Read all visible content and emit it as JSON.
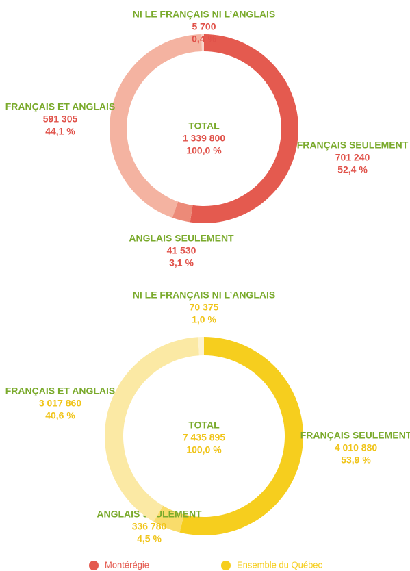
{
  "chart_data": [
    {
      "type": "donut",
      "name": "Montérégie",
      "color": "#e45a4f",
      "categories": [
        "FRANÇAIS SEULEMENT",
        "ANGLAIS SEULEMENT",
        "FRANÇAIS ET ANGLAIS",
        "NI LE FRANÇAIS NI L’ANGLAIS"
      ],
      "values": [
        701240,
        41530,
        591305,
        5700
      ],
      "value_labels": [
        "701 240",
        "41 530",
        "591 305",
        "5 700"
      ],
      "percentages": [
        52.4,
        3.1,
        44.1,
        0.4
      ],
      "percentage_labels": [
        "52,4 %",
        "3,1 %",
        "44,1 %",
        "0,4 %"
      ],
      "colors": [
        "#e45a4f",
        "#ec8a78",
        "#f4b3a1",
        "#f9d6cc"
      ],
      "total_title": "TOTAL",
      "total": 1339800,
      "total_label": "1 339 800",
      "total_percentage": 100,
      "total_percentage_label": "100,0 %"
    },
    {
      "type": "donut",
      "name": "Ensemble du Québec",
      "color": "#f6ce1e",
      "categories": [
        "FRANÇAIS SEULEMENT",
        "ANGLAIS SEULEMENT",
        "FRANÇAIS ET ANGLAIS",
        "NI LE FRANÇAIS NI L’ANGLAIS"
      ],
      "values": [
        4010880,
        336780,
        3017860,
        70375
      ],
      "value_labels": [
        "4 010 880",
        "336 780",
        "3 017 860",
        "70 375"
      ],
      "percentages": [
        53.9,
        4.5,
        40.6,
        1.0
      ],
      "percentage_labels": [
        "53,9 %",
        "4,5 %",
        "40,6 %",
        "1,0 %"
      ],
      "colors": [
        "#f6ce1e",
        "#f9dc6b",
        "#fbe9a4",
        "#fdf3d0"
      ],
      "total_title": "TOTAL",
      "total": 7435895,
      "total_label": "7 435 895",
      "total_percentage": 100,
      "total_percentage_label": "100,0 %"
    }
  ]
}
